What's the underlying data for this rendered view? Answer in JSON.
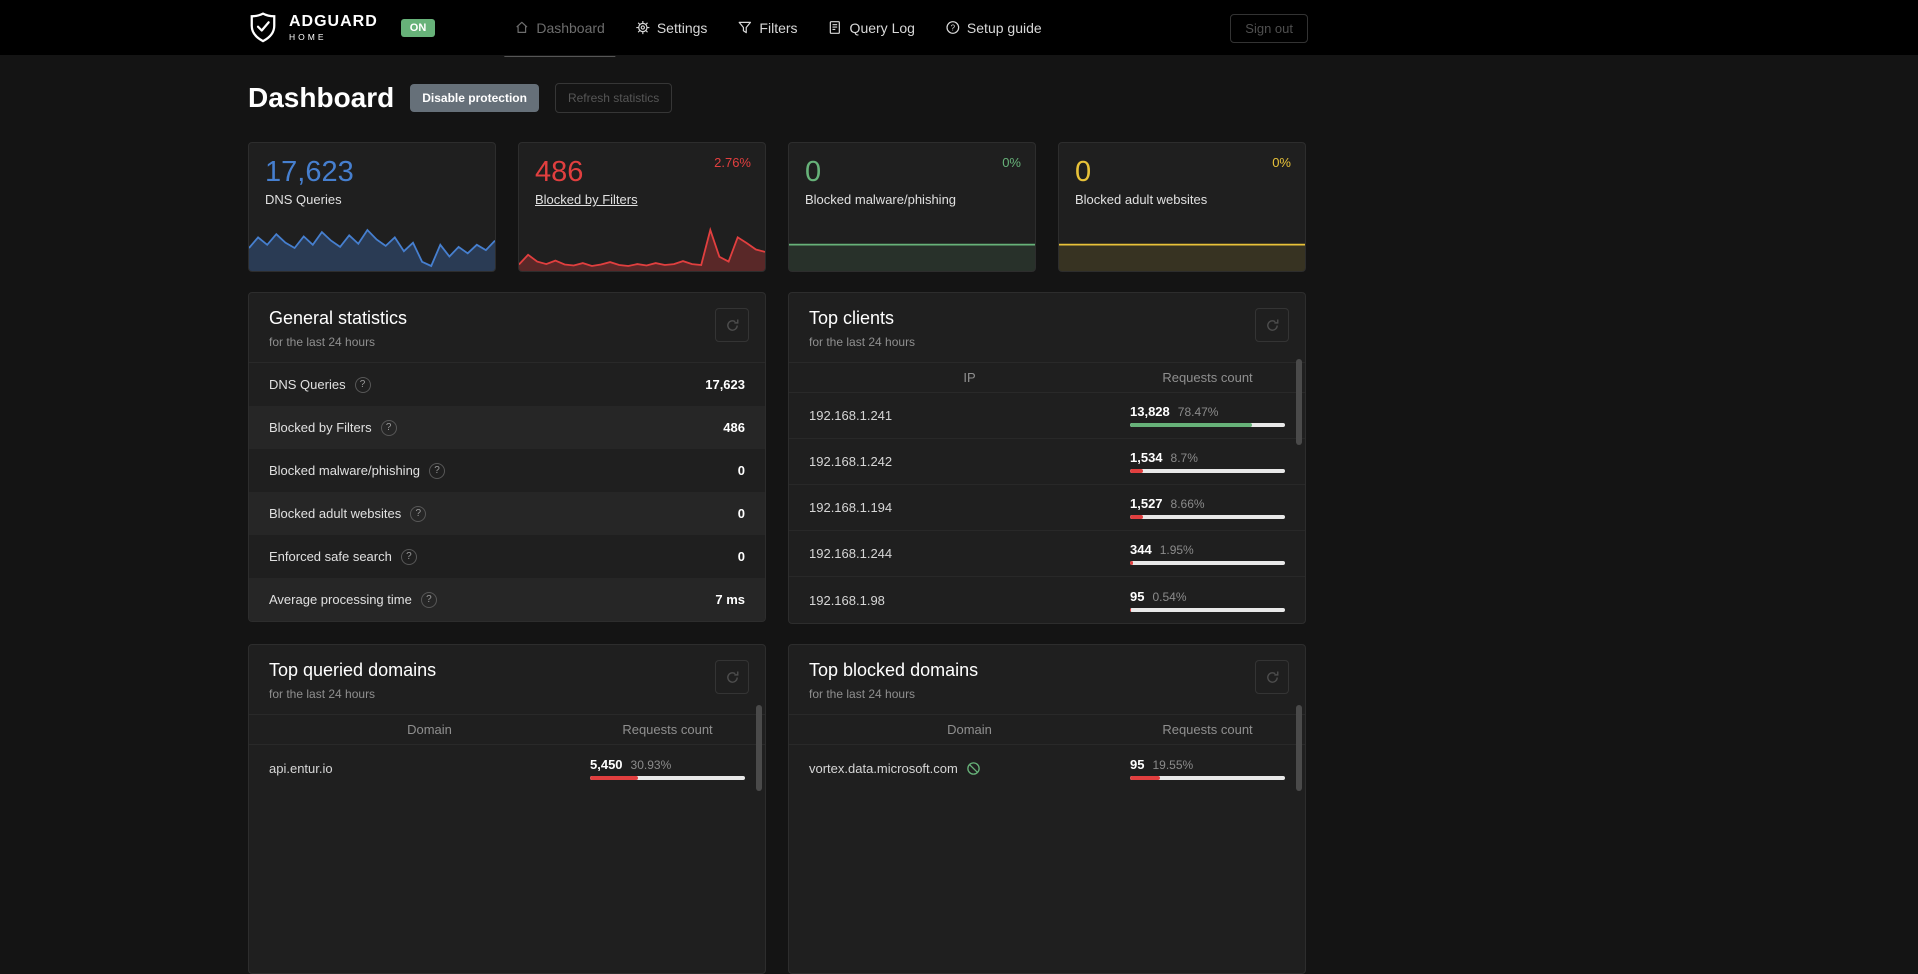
{
  "navbar": {
    "brand": {
      "name": "ADGUARD",
      "sub": "HOME",
      "status_badge": "ON"
    },
    "items": [
      {
        "label": "Dashboard"
      },
      {
        "label": "Settings"
      },
      {
        "label": "Filters"
      },
      {
        "label": "Query Log"
      },
      {
        "label": "Setup guide"
      }
    ],
    "sign_out_label": "Sign out"
  },
  "page": {
    "title": "Dashboard",
    "buttons": {
      "disable_protection": "Disable protection",
      "refresh_statistics": "Refresh statistics"
    }
  },
  "stat_cards": [
    {
      "value": "17,623",
      "label": "DNS Queries",
      "color": "#467fcf",
      "sparkline": [
        55,
        65,
        58,
        68,
        60,
        55,
        66,
        58,
        70,
        62,
        56,
        67,
        59,
        72,
        63,
        57,
        65,
        52,
        60,
        42,
        38,
        58,
        47,
        56,
        50,
        58,
        53,
        62
      ]
    },
    {
      "value": "486",
      "label": "Blocked by Filters",
      "badge": "2.76%",
      "color": "#e13f3f",
      "sparkline": [
        14,
        34,
        20,
        15,
        22,
        14,
        12,
        17,
        11,
        14,
        19,
        13,
        11,
        15,
        12,
        17,
        13,
        15,
        21,
        15,
        13,
        85,
        30,
        20,
        70,
        58,
        45,
        40
      ]
    },
    {
      "value": "0",
      "label": "Blocked malware/phishing",
      "badge": "0%",
      "color": "#67b279",
      "sparkline": [
        0,
        0
      ]
    },
    {
      "value": "0",
      "label": "Blocked adult websites",
      "badge": "0%",
      "color": "#e8c239",
      "sparkline": [
        0,
        0
      ]
    }
  ],
  "general_statistics": {
    "title": "General statistics",
    "subtitle": "for the last 24 hours",
    "rows": [
      {
        "label": "DNS Queries",
        "value": "17,623"
      },
      {
        "label": "Blocked by Filters",
        "value": "486"
      },
      {
        "label": "Blocked malware/phishing",
        "value": "0"
      },
      {
        "label": "Blocked adult websites",
        "value": "0"
      },
      {
        "label": "Enforced safe search",
        "value": "0"
      },
      {
        "label": "Average processing time",
        "value": "7 ms"
      }
    ]
  },
  "top_clients": {
    "title": "Top clients",
    "subtitle": "for the last 24 hours",
    "columns": [
      "IP",
      "Requests count"
    ],
    "rows": [
      {
        "main": "192.168.1.241",
        "count": "13,828",
        "percent": "78.47%",
        "bar": 78.47,
        "bar_color": "#67b279"
      },
      {
        "main": "192.168.1.242",
        "count": "1,534",
        "percent": "8.7%",
        "bar": 8.7,
        "bar_color": "#e13f3f"
      },
      {
        "main": "192.168.1.194",
        "count": "1,527",
        "percent": "8.66%",
        "bar": 8.66,
        "bar_color": "#e13f3f"
      },
      {
        "main": "192.168.1.244",
        "count": "344",
        "percent": "1.95%",
        "bar": 1.95,
        "bar_color": "#e13f3f"
      },
      {
        "main": "192.168.1.98",
        "count": "95",
        "percent": "0.54%",
        "bar": 0.54,
        "bar_color": "#e13f3f"
      }
    ]
  },
  "top_queried_domains": {
    "title": "Top queried domains",
    "subtitle": "for the last 24 hours",
    "columns": [
      "Domain",
      "Requests count"
    ],
    "rows": [
      {
        "main": "api.entur.io",
        "count": "5,450",
        "percent": "30.93%",
        "bar": 30.93,
        "bar_color": "#e13f3f"
      }
    ]
  },
  "top_blocked_domains": {
    "title": "Top blocked domains",
    "subtitle": "for the last 24 hours",
    "columns": [
      "Domain",
      "Requests count"
    ],
    "rows": [
      {
        "main": "vortex.data.microsoft.com",
        "icon": "blocked-icon",
        "count": "95",
        "percent": "19.55%",
        "bar": 19.55,
        "bar_color": "#e13f3f"
      }
    ]
  }
}
